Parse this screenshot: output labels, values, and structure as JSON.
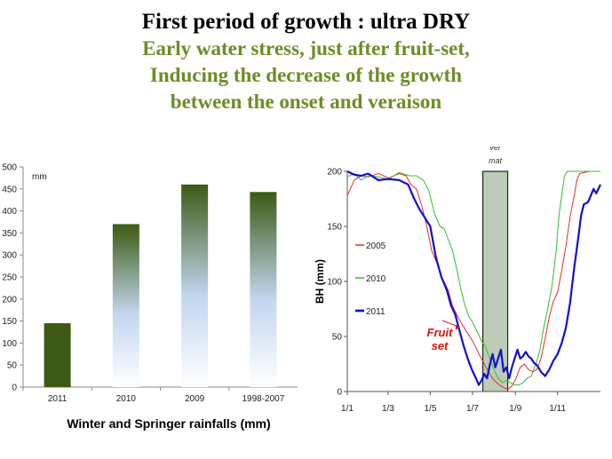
{
  "header": {
    "title": "First period of growth : ultra DRY",
    "subtitle_lines": [
      "Early water stress, just after fruit-set,",
      "Inducing the decrease of the growth",
      "between the onset and veraison"
    ]
  },
  "colors": {
    "title": "#000000",
    "subtitle": "#6b8e23",
    "bar_dark": "#3c5a14",
    "bar_light": "#c2d6ef",
    "line_2005": "#e03030",
    "line_2010": "#30c030",
    "line_2011": "#1010d0",
    "band": "#6b8e5a"
  },
  "chart_data": [
    {
      "type": "bar",
      "categories": [
        "2011",
        "2010",
        "2009",
        "1998-2007"
      ],
      "values": [
        145,
        370,
        460,
        443
      ],
      "ylim": [
        0,
        500
      ],
      "yticks": [
        "0",
        "50",
        "100",
        "150",
        "200",
        "250",
        "300",
        "350",
        "400",
        "450",
        "500"
      ],
      "unit_label": "mm",
      "caption": "Winter and Springer rainfalls (mm)",
      "grid": false
    },
    {
      "type": "line",
      "ylabel": "BH  (mm)",
      "ylim": [
        0,
        200
      ],
      "yticks": [
        "0",
        "50",
        "100",
        "150",
        "200"
      ],
      "xlim": [
        0,
        366
      ],
      "xticks": [
        {
          "label": "1/1",
          "day": 0
        },
        {
          "label": "1/3",
          "day": 59
        },
        {
          "label": "1/5",
          "day": 120
        },
        {
          "label": "1/7",
          "day": 181
        },
        {
          "label": "1/9",
          "day": 243
        },
        {
          "label": "1/11",
          "day": 304
        }
      ],
      "band": {
        "label_lines": [
          "ver",
          "mat"
        ],
        "start_day": 196,
        "end_day": 232
      },
      "annotation": {
        "lines": [
          "Fruit",
          "set"
        ],
        "day": 178,
        "value": 60
      },
      "grid": false,
      "legend_position": "left-middle",
      "series": [
        {
          "name": "2005",
          "points": [
            [
              0,
              178
            ],
            [
              10,
              192
            ],
            [
              20,
              196
            ],
            [
              30,
              195
            ],
            [
              45,
              198
            ],
            [
              60,
              194
            ],
            [
              75,
              198
            ],
            [
              85,
              196
            ],
            [
              92,
              188
            ],
            [
              100,
              184
            ],
            [
              108,
              168
            ],
            [
              115,
              150
            ],
            [
              122,
              128
            ],
            [
              130,
              116
            ],
            [
              138,
              102
            ],
            [
              146,
              92
            ],
            [
              152,
              78
            ],
            [
              158,
              70
            ],
            [
              165,
              62
            ],
            [
              172,
              55
            ],
            [
              180,
              47
            ],
            [
              186,
              40
            ],
            [
              192,
              32
            ],
            [
              198,
              25
            ],
            [
              204,
              18
            ],
            [
              210,
              12
            ],
            [
              216,
              8
            ],
            [
              222,
              5
            ],
            [
              228,
              3
            ],
            [
              232,
              2
            ],
            [
              238,
              5
            ],
            [
              244,
              12
            ],
            [
              250,
              22
            ],
            [
              256,
              25
            ],
            [
              262,
              20
            ],
            [
              268,
              18
            ],
            [
              274,
              20
            ],
            [
              280,
              30
            ],
            [
              286,
              48
            ],
            [
              292,
              68
            ],
            [
              298,
              82
            ],
            [
              304,
              90
            ],
            [
              310,
              110
            ],
            [
              316,
              132
            ],
            [
              322,
              158
            ],
            [
              328,
              178
            ],
            [
              332,
              192
            ],
            [
              336,
              198
            ],
            [
              350,
              200
            ],
            [
              366,
              200
            ]
          ]
        },
        {
          "name": "2010",
          "points": [
            [
              0,
              195
            ],
            [
              10,
              198
            ],
            [
              20,
              192
            ],
            [
              30,
              196
            ],
            [
              45,
              195
            ],
            [
              60,
              193
            ],
            [
              75,
              199
            ],
            [
              90,
              196
            ],
            [
              100,
              196
            ],
            [
              110,
              192
            ],
            [
              118,
              182
            ],
            [
              126,
              162
            ],
            [
              134,
              150
            ],
            [
              140,
              148
            ],
            [
              146,
              138
            ],
            [
              152,
              128
            ],
            [
              158,
              112
            ],
            [
              164,
              94
            ],
            [
              170,
              78
            ],
            [
              176,
              68
            ],
            [
              182,
              62
            ],
            [
              188,
              54
            ],
            [
              194,
              46
            ],
            [
              200,
              40
            ],
            [
              206,
              30
            ],
            [
              212,
              20
            ],
            [
              218,
              12
            ],
            [
              224,
              8
            ],
            [
              230,
              10
            ],
            [
              236,
              8
            ],
            [
              242,
              6
            ],
            [
              248,
              6
            ],
            [
              254,
              8
            ],
            [
              260,
              12
            ],
            [
              266,
              14
            ],
            [
              272,
              24
            ],
            [
              278,
              36
            ],
            [
              284,
              58
            ],
            [
              290,
              76
            ],
            [
              296,
              96
            ],
            [
              302,
              128
            ],
            [
              306,
              160
            ],
            [
              310,
              178
            ],
            [
              314,
              196
            ],
            [
              318,
              200
            ],
            [
              340,
              200
            ],
            [
              366,
              200
            ]
          ]
        },
        {
          "name": "2011",
          "points": [
            [
              0,
              200
            ],
            [
              10,
              197
            ],
            [
              20,
              196
            ],
            [
              30,
              198
            ],
            [
              45,
              192
            ],
            [
              60,
              193
            ],
            [
              75,
              192
            ],
            [
              88,
              188
            ],
            [
              96,
              176
            ],
            [
              104,
              166
            ],
            [
              112,
              158
            ],
            [
              120,
              150
            ],
            [
              128,
              122
            ],
            [
              136,
              104
            ],
            [
              144,
              92
            ],
            [
              150,
              78
            ],
            [
              156,
              70
            ],
            [
              162,
              56
            ],
            [
              168,
              42
            ],
            [
              174,
              30
            ],
            [
              180,
              20
            ],
            [
              186,
              12
            ],
            [
              190,
              6
            ],
            [
              194,
              10
            ],
            [
              198,
              16
            ],
            [
              202,
              12
            ],
            [
              206,
              24
            ],
            [
              210,
              34
            ],
            [
              214,
              22
            ],
            [
              218,
              30
            ],
            [
              222,
              38
            ],
            [
              226,
              18
            ],
            [
              230,
              22
            ],
            [
              234,
              12
            ],
            [
              238,
              22
            ],
            [
              242,
              30
            ],
            [
              246,
              38
            ],
            [
              250,
              30
            ],
            [
              254,
              32
            ],
            [
              258,
              36
            ],
            [
              262,
              32
            ],
            [
              266,
              30
            ],
            [
              270,
              26
            ],
            [
              274,
              24
            ],
            [
              280,
              18
            ],
            [
              286,
              14
            ],
            [
              292,
              20
            ],
            [
              298,
              28
            ],
            [
              304,
              34
            ],
            [
              310,
              44
            ],
            [
              316,
              58
            ],
            [
              322,
              80
            ],
            [
              328,
              112
            ],
            [
              334,
              140
            ],
            [
              338,
              160
            ],
            [
              342,
              170
            ],
            [
              348,
              172
            ],
            [
              352,
              178
            ],
            [
              356,
              184
            ],
            [
              360,
              180
            ],
            [
              366,
              188
            ]
          ]
        }
      ]
    }
  ]
}
